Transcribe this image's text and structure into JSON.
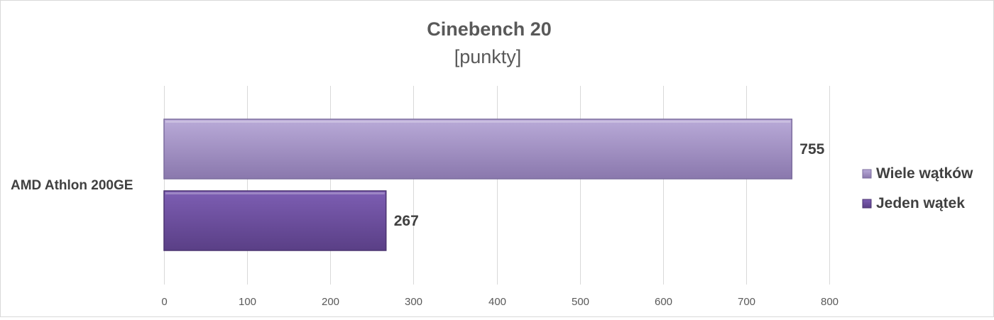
{
  "chart_data": {
    "type": "bar",
    "orientation": "horizontal",
    "title": "Cinebench 20",
    "subtitle": "[punkty]",
    "categories": [
      "AMD Athlon 200GE"
    ],
    "series": [
      {
        "name": "Wiele wątków",
        "values": [
          755
        ],
        "color": "#9f8fc3"
      },
      {
        "name": "Jeden wątek",
        "values": [
          267
        ],
        "color": "#6b4d9c"
      }
    ],
    "xlim": [
      0,
      800
    ],
    "x_ticks": [
      0,
      100,
      200,
      300,
      400,
      500,
      600,
      700,
      800
    ],
    "grid": true,
    "legend_position": "right",
    "data_labels": true
  }
}
